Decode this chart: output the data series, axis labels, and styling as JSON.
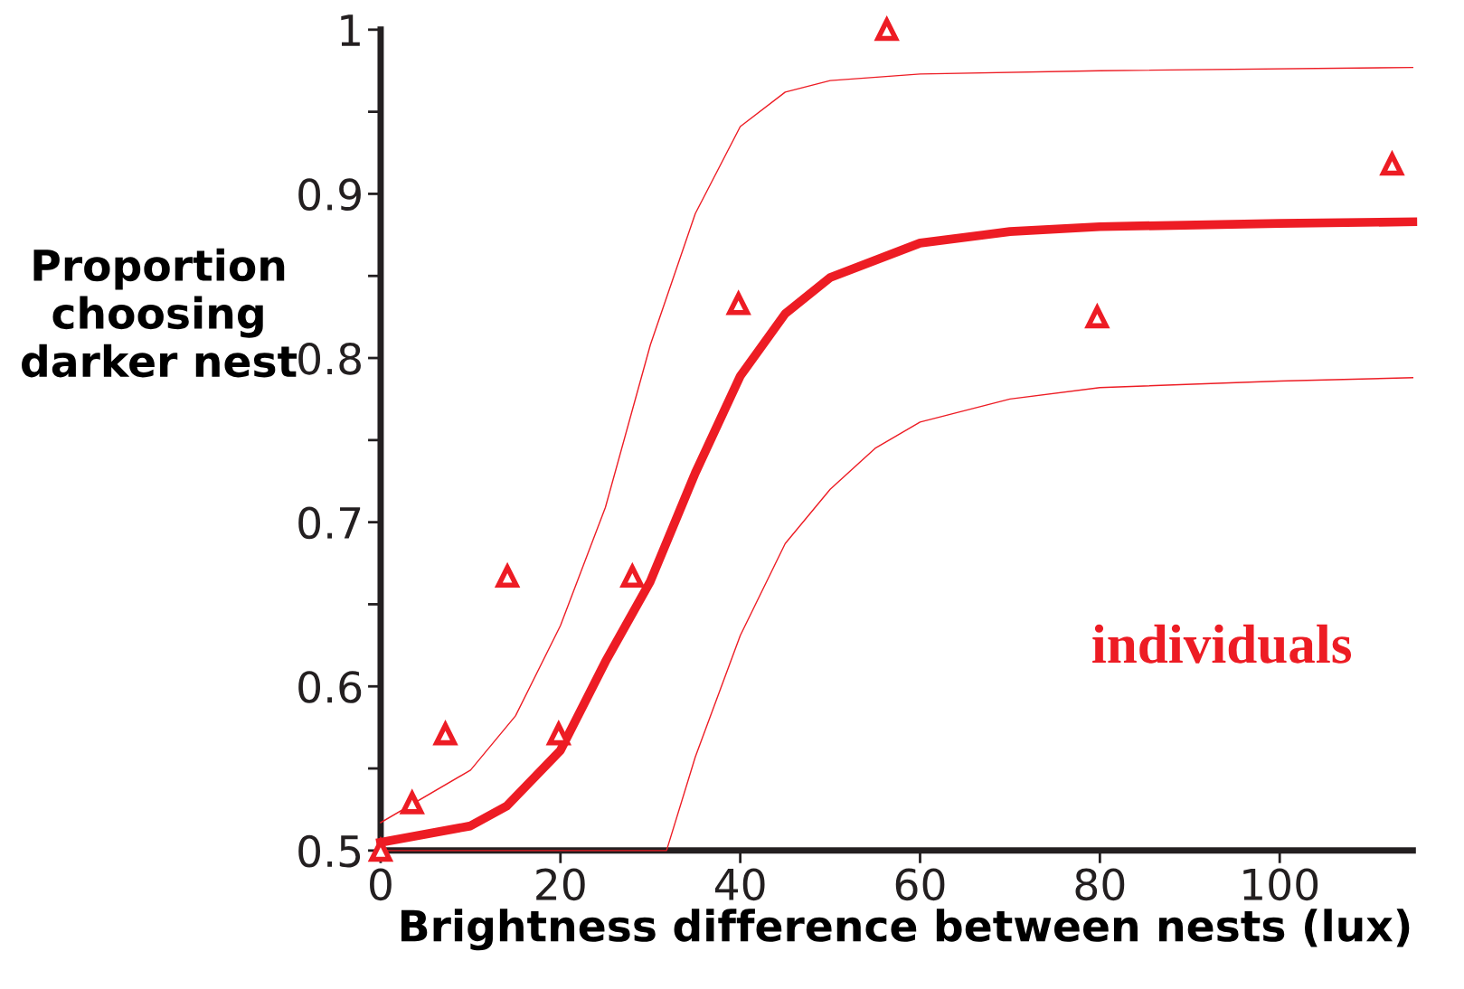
{
  "chart_data": {
    "type": "line",
    "xlabel": "Brightness difference between nests (lux)",
    "ylabel": "Proportion\nchoosing\ndarker nest",
    "annotations": [
      "individuals"
    ],
    "xlim": [
      0,
      114.8
    ],
    "ylim": [
      0.5,
      1
    ],
    "xticks": [
      0,
      20,
      40,
      60,
      80,
      100
    ],
    "yticks": [
      0.5,
      {
        "value": 0.55,
        "label": null
      },
      0.6,
      {
        "value": 0.65,
        "label": null
      },
      0.7,
      {
        "value": 0.75,
        "label": null
      },
      0.8,
      {
        "value": 0.85,
        "label": null
      },
      0.9,
      {
        "value": 0.95,
        "label": null
      },
      1
    ],
    "grid": false,
    "legend": false,
    "series": [
      {
        "type": "scatter",
        "marker": "triangle",
        "color": "#ed1c24",
        "x": [
          0,
          3.5,
          7.2,
          14.1,
          19.8,
          28,
          39.8,
          56.3,
          79.7,
          112.5
        ],
        "values": [
          0.5,
          0.529,
          0.571,
          0.667,
          0.571,
          0.667,
          0.833,
          1.0,
          0.825,
          0.918
        ]
      },
      {
        "color": "#ed1c24",
        "line_style": "solid",
        "x": [
          0,
          10,
          14,
          20,
          25,
          30,
          35,
          40,
          45,
          50,
          60,
          70,
          80,
          100,
          114.8
        ],
        "values": [
          0.505,
          0.515,
          0.527,
          0.561,
          0.615,
          0.664,
          0.73,
          0.789,
          0.827,
          0.849,
          0.87,
          0.877,
          0.88,
          0.882,
          0.883
        ]
      },
      {
        "color": "#ed1c24",
        "line_style": "solid",
        "x": [
          0,
          10,
          15,
          20,
          25,
          30,
          35,
          40,
          45,
          50,
          60,
          80,
          114.8
        ],
        "values": [
          0.517,
          0.549,
          0.582,
          0.637,
          0.709,
          0.808,
          0.888,
          0.941,
          0.962,
          0.969,
          0.973,
          0.975,
          0.977
        ]
      },
      {
        "color": "#ed1c24",
        "line_style": "solid",
        "x": [
          0,
          31.8,
          35,
          40,
          45,
          50,
          55,
          60,
          70,
          80,
          100,
          114.8
        ],
        "values": [
          0.5,
          0.5,
          0.557,
          0.631,
          0.687,
          0.72,
          0.745,
          0.761,
          0.775,
          0.782,
          0.786,
          0.788
        ]
      }
    ]
  }
}
